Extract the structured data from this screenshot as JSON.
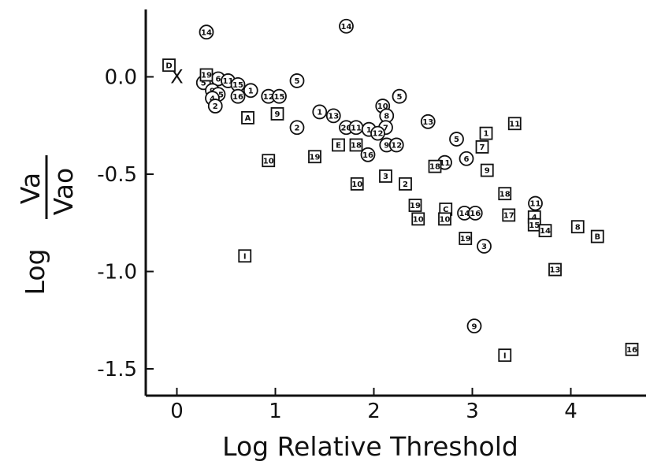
{
  "chart_data": {
    "type": "scatter",
    "xlabel": "Log Relative Threshold",
    "ylabel": {
      "prefix": "Log",
      "numerator": "Va",
      "denominator": "Vao"
    },
    "xlim": [
      -0.3,
      4.75
    ],
    "ylim": [
      -1.65,
      0.35
    ],
    "xticks": [
      0,
      1,
      2,
      3,
      4
    ],
    "xtick_labels": [
      "0",
      "1",
      "2",
      "3",
      "4"
    ],
    "yticks": [
      0.0,
      -0.5,
      -1.0,
      -1.5
    ],
    "ytick_labels": [
      "0.0",
      "-0.5",
      "-1.0",
      "-1.5"
    ],
    "grid": false,
    "legend": "none",
    "origin_marker": {
      "label": "X",
      "x": 0.0,
      "y": 0.0
    },
    "series": [
      {
        "marker": "circle",
        "points": [
          {
            "label": "14",
            "x": 0.3,
            "y": 0.23
          },
          {
            "label": "14",
            "x": 1.72,
            "y": 0.26
          },
          {
            "label": "5",
            "x": 0.27,
            "y": -0.03
          },
          {
            "label": "6",
            "x": 0.42,
            "y": -0.01
          },
          {
            "label": "11",
            "x": 0.52,
            "y": -0.02
          },
          {
            "label": "15",
            "x": 0.62,
            "y": -0.04
          },
          {
            "label": "1",
            "x": 0.75,
            "y": -0.07
          },
          {
            "label": "9",
            "x": 0.36,
            "y": -0.07
          },
          {
            "label": "15",
            "x": 0.42,
            "y": -0.09
          },
          {
            "label": "4",
            "x": 0.36,
            "y": -0.11
          },
          {
            "label": "16",
            "x": 0.62,
            "y": -0.1
          },
          {
            "label": "2",
            "x": 0.39,
            "y": -0.15
          },
          {
            "label": "12",
            "x": 0.93,
            "y": -0.1
          },
          {
            "label": "15",
            "x": 1.04,
            "y": -0.1
          },
          {
            "label": "5",
            "x": 1.22,
            "y": -0.02
          },
          {
            "label": "2",
            "x": 1.22,
            "y": -0.26
          },
          {
            "label": "1",
            "x": 1.45,
            "y": -0.18
          },
          {
            "label": "13",
            "x": 1.59,
            "y": -0.2
          },
          {
            "label": "20",
            "x": 1.72,
            "y": -0.26
          },
          {
            "label": "11",
            "x": 1.82,
            "y": -0.26
          },
          {
            "label": "1",
            "x": 1.95,
            "y": -0.27
          },
          {
            "label": "10",
            "x": 2.09,
            "y": -0.15
          },
          {
            "label": "8",
            "x": 2.13,
            "y": -0.2
          },
          {
            "label": "5",
            "x": 2.26,
            "y": -0.1
          },
          {
            "label": "7",
            "x": 2.12,
            "y": -0.26
          },
          {
            "label": "12",
            "x": 2.04,
            "y": -0.29
          },
          {
            "label": "16",
            "x": 1.94,
            "y": -0.4
          },
          {
            "label": "9",
            "x": 2.13,
            "y": -0.35
          },
          {
            "label": "12",
            "x": 2.23,
            "y": -0.35
          },
          {
            "label": "13",
            "x": 2.55,
            "y": -0.23
          },
          {
            "label": "11",
            "x": 2.72,
            "y": -0.44
          },
          {
            "label": "5",
            "x": 2.84,
            "y": -0.32
          },
          {
            "label": "6",
            "x": 2.94,
            "y": -0.42
          },
          {
            "label": "14",
            "x": 2.92,
            "y": -0.7
          },
          {
            "label": "16",
            "x": 3.03,
            "y": -0.7
          },
          {
            "label": "3",
            "x": 3.12,
            "y": -0.87
          },
          {
            "label": "9",
            "x": 3.02,
            "y": -1.28
          },
          {
            "label": "11",
            "x": 3.64,
            "y": -0.65
          }
        ]
      },
      {
        "marker": "square",
        "points": [
          {
            "label": "D",
            "x": -0.08,
            "y": 0.06
          },
          {
            "label": "19",
            "x": 0.3,
            "y": 0.01
          },
          {
            "label": "A",
            "x": 0.72,
            "y": -0.21
          },
          {
            "label": "9",
            "x": 1.02,
            "y": -0.19
          },
          {
            "label": "10",
            "x": 0.93,
            "y": -0.43
          },
          {
            "label": "19",
            "x": 1.4,
            "y": -0.41
          },
          {
            "label": "I",
            "x": 0.69,
            "y": -0.92
          },
          {
            "label": "E",
            "x": 1.64,
            "y": -0.35
          },
          {
            "label": "18",
            "x": 1.82,
            "y": -0.35
          },
          {
            "label": "10",
            "x": 1.83,
            "y": -0.55
          },
          {
            "label": "3",
            "x": 2.12,
            "y": -0.51
          },
          {
            "label": "2",
            "x": 2.32,
            "y": -0.55
          },
          {
            "label": "19",
            "x": 2.42,
            "y": -0.66
          },
          {
            "label": "10",
            "x": 2.45,
            "y": -0.73
          },
          {
            "label": "18",
            "x": 2.62,
            "y": -0.46
          },
          {
            "label": "C",
            "x": 2.73,
            "y": -0.68
          },
          {
            "label": "10",
            "x": 2.72,
            "y": -0.73
          },
          {
            "label": "19",
            "x": 2.93,
            "y": -0.83
          },
          {
            "label": "1",
            "x": 3.14,
            "y": -0.29
          },
          {
            "label": "7",
            "x": 3.1,
            "y": -0.36
          },
          {
            "label": "9",
            "x": 3.15,
            "y": -0.48
          },
          {
            "label": "11",
            "x": 3.43,
            "y": -0.24
          },
          {
            "label": "18",
            "x": 3.33,
            "y": -0.6
          },
          {
            "label": "17",
            "x": 3.37,
            "y": -0.71
          },
          {
            "label": "4",
            "x": 3.63,
            "y": -0.72
          },
          {
            "label": "15",
            "x": 3.63,
            "y": -0.76
          },
          {
            "label": "14",
            "x": 3.74,
            "y": -0.79
          },
          {
            "label": "8",
            "x": 4.07,
            "y": -0.77
          },
          {
            "label": "B",
            "x": 4.27,
            "y": -0.82
          },
          {
            "label": "13",
            "x": 3.84,
            "y": -0.99
          },
          {
            "label": "I",
            "x": 3.33,
            "y": -1.43
          },
          {
            "label": "16",
            "x": 4.62,
            "y": -1.4
          }
        ]
      }
    ]
  }
}
